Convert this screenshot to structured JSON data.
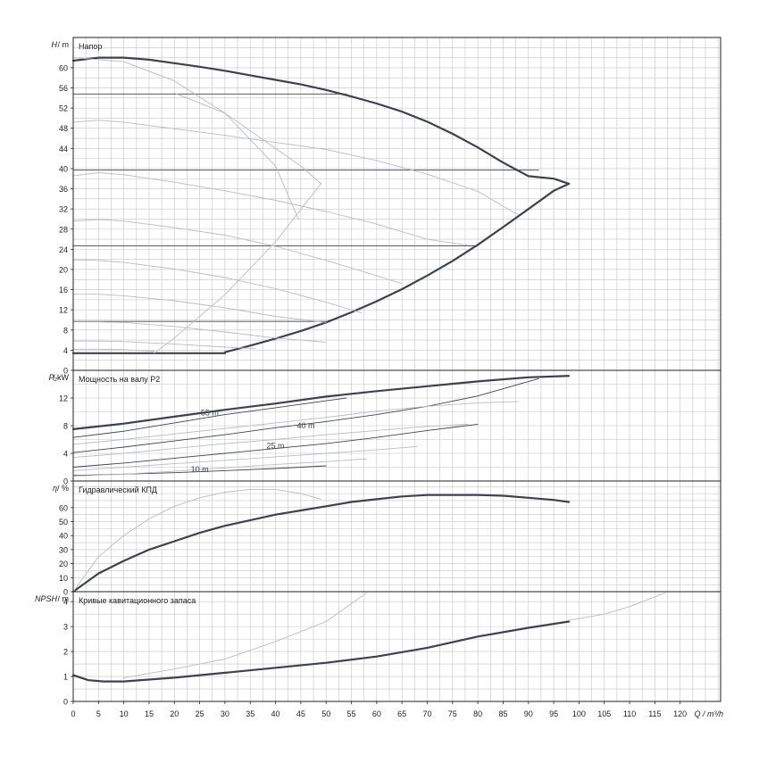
{
  "chart_data": [
    {
      "type": "line",
      "title": "Напор",
      "ylabel_sym": "H",
      "ylabel_unit": "/ m",
      "ylim": [
        0,
        66
      ],
      "yticks": [
        0,
        4,
        8,
        12,
        16,
        20,
        24,
        28,
        32,
        36,
        40,
        44,
        48,
        52,
        56,
        60
      ],
      "grid": true,
      "lines": [
        {
          "id": "max-curve",
          "style": "main",
          "x": [
            0,
            5,
            10,
            15,
            20,
            25,
            30,
            35,
            40,
            45,
            50,
            55,
            60,
            65,
            70,
            75,
            80,
            85,
            90,
            95,
            98
          ],
          "y": [
            61.4,
            62,
            62,
            61.6,
            60.9,
            60.2,
            59.4,
            58.5,
            57.6,
            56.7,
            55.6,
            54.3,
            52.9,
            51.3,
            49.3,
            46.9,
            44.2,
            41.2,
            38.5,
            38,
            37
          ]
        },
        {
          "id": "right-boundary",
          "style": "main",
          "x": [
            30,
            35,
            40,
            45,
            50,
            55,
            60,
            65,
            70,
            75,
            80,
            85,
            90,
            95,
            98
          ],
          "y": [
            3.6,
            4.9,
            6.3,
            7.8,
            9.5,
            11.5,
            13.7,
            16.1,
            18.8,
            21.7,
            24.9,
            28.4,
            32.0,
            35.6,
            37.0
          ]
        },
        {
          "id": "bottom-boundary",
          "style": "main",
          "x": [
            0,
            30
          ],
          "y": [
            3.4,
            3.4
          ]
        },
        {
          "id": "h-ref-55",
          "style": "thin",
          "x": [
            0,
            54
          ],
          "y": [
            54.8,
            54.8
          ]
        },
        {
          "id": "h-ref-40",
          "style": "thin",
          "x": [
            0,
            92
          ],
          "y": [
            39.7,
            39.7
          ]
        },
        {
          "id": "h-ref-25",
          "style": "thin",
          "x": [
            0,
            80
          ],
          "y": [
            24.7,
            24.7
          ]
        },
        {
          "id": "h-ref-10",
          "style": "thin",
          "x": [
            0,
            50
          ],
          "y": [
            9.7,
            9.7
          ]
        },
        {
          "id": "reduced-1",
          "style": "light",
          "x": [
            0,
            5,
            10,
            20,
            30,
            40,
            50,
            60,
            70,
            80,
            88
          ],
          "y": [
            49.2,
            49.6,
            49.2,
            47.9,
            46.6,
            45.2,
            43.8,
            41.6,
            38.9,
            35.5,
            30.8
          ]
        },
        {
          "id": "reduced-2",
          "style": "light",
          "x": [
            0,
            5,
            10,
            20,
            30,
            40,
            50,
            60,
            70,
            78
          ],
          "y": [
            38.6,
            39.2,
            38.8,
            37.3,
            35.6,
            33.7,
            31.5,
            29.0,
            26.0,
            24.8
          ]
        },
        {
          "id": "reduced-3",
          "style": "light",
          "x": [
            0,
            5,
            10,
            20,
            30,
            40,
            50,
            58,
            65
          ],
          "y": [
            29.6,
            29.9,
            29.6,
            28.3,
            26.8,
            24.6,
            21.8,
            19.4,
            17.2
          ]
        },
        {
          "id": "reduced-4",
          "style": "light",
          "x": [
            0,
            5,
            10,
            20,
            30,
            40,
            50,
            57
          ],
          "y": [
            21.9,
            21.8,
            21.4,
            20.1,
            18.4,
            16.2,
            13.5,
            11.4
          ]
        },
        {
          "id": "reduced-5",
          "style": "light",
          "x": [
            0,
            5,
            10,
            20,
            30,
            40,
            50
          ],
          "y": [
            15.1,
            15.1,
            14.8,
            13.8,
            12.4,
            10.7,
            9.5
          ]
        },
        {
          "id": "reduced-6",
          "style": "light",
          "x": [
            0,
            5,
            10,
            20,
            30,
            40,
            50
          ],
          "y": [
            9.6,
            9.6,
            9.5,
            8.7,
            7.6,
            6.4,
            5.6
          ]
        },
        {
          "id": "reduced-7",
          "style": "light",
          "x": [
            0,
            5,
            10,
            20,
            30,
            36
          ],
          "y": [
            5.8,
            5.8,
            5.7,
            5.2,
            4.6,
            4.3
          ]
        },
        {
          "id": "reduced-8",
          "style": "light",
          "x": [
            0,
            5,
            10,
            16
          ],
          "y": [
            4.2,
            4.2,
            4.1,
            3.8
          ]
        },
        {
          "id": "sweep-1",
          "style": "light",
          "x": [
            0,
            10,
            20,
            30,
            40,
            44.5
          ],
          "y": [
            62,
            61.2,
            57.4,
            51,
            40.5,
            30
          ]
        },
        {
          "id": "sweep-2",
          "style": "light",
          "x": [
            20,
            30,
            40,
            45,
            49
          ],
          "y": [
            55,
            51,
            44,
            40.5,
            37
          ]
        },
        {
          "id": "sweep-3",
          "style": "light",
          "x": [
            16,
            20,
            30,
            40,
            49
          ],
          "y": [
            3.4,
            6.4,
            15,
            25.5,
            37
          ]
        }
      ]
    },
    {
      "type": "line",
      "title": "Мощность на валу P2",
      "ylabel_sym": "P₂",
      "ylabel_unit": "/ kW",
      "ylim": [
        0,
        16
      ],
      "yticks": [
        0,
        4,
        8,
        12
      ],
      "grid": true,
      "annotations": [
        {
          "text": "55 m",
          "x": 27,
          "y": 9.5
        },
        {
          "text": "40 m",
          "x": 46,
          "y": 7.6
        },
        {
          "text": "25 m",
          "x": 40,
          "y": 4.7
        },
        {
          "text": "10 m",
          "x": 25,
          "y": 1.3
        }
      ],
      "lines": [
        {
          "id": "p-max",
          "style": "main",
          "x": [
            0,
            10,
            20,
            30,
            40,
            50,
            60,
            70,
            80,
            90,
            98
          ],
          "y": [
            7.5,
            8.3,
            9.3,
            10.3,
            11.2,
            12.2,
            13,
            13.7,
            14.4,
            15,
            15.2
          ]
        },
        {
          "id": "p-55",
          "style": "thin",
          "x": [
            0,
            10,
            20,
            30,
            40,
            50,
            54
          ],
          "y": [
            6.3,
            7.2,
            8.4,
            9.6,
            10.6,
            11.6,
            12
          ]
        },
        {
          "id": "p-40",
          "style": "thin",
          "x": [
            0,
            10,
            20,
            30,
            40,
            50,
            60,
            70,
            80,
            92
          ],
          "y": [
            4.1,
            4.9,
            5.8,
            6.7,
            7.7,
            8.6,
            9.6,
            10.8,
            12.3,
            14.8
          ]
        },
        {
          "id": "p-25",
          "style": "thin",
          "x": [
            0,
            10,
            20,
            30,
            40,
            50,
            60,
            70,
            80
          ],
          "y": [
            2,
            2.6,
            3.3,
            4,
            4.7,
            5.4,
            6.3,
            7.3,
            8.2
          ]
        },
        {
          "id": "p-10",
          "style": "thin",
          "x": [
            0,
            10,
            20,
            30,
            40,
            50
          ],
          "y": [
            0.8,
            1,
            1.2,
            1.5,
            1.8,
            2.2
          ]
        },
        {
          "id": "p-light-1",
          "style": "light",
          "x": [
            0,
            10,
            20,
            30,
            40,
            50,
            60,
            70,
            80,
            88
          ],
          "y": [
            5.3,
            6,
            6.8,
            7.6,
            8.4,
            9.2,
            10.1,
            10.8,
            11.3,
            11.5
          ]
        },
        {
          "id": "p-light-2",
          "style": "light",
          "x": [
            0,
            10,
            20,
            30,
            40,
            50,
            60,
            70,
            78
          ],
          "y": [
            3.4,
            4,
            4.7,
            5.4,
            6,
            6.7,
            7.3,
            7.9,
            8.2
          ]
        },
        {
          "id": "p-light-3",
          "style": "light",
          "x": [
            0,
            10,
            20,
            30,
            40,
            50,
            60,
            68
          ],
          "y": [
            1.5,
            2,
            2.5,
            3,
            3.5,
            4,
            4.5,
            5
          ]
        },
        {
          "id": "p-light-4",
          "style": "light",
          "x": [
            0,
            10,
            20,
            30,
            40,
            50,
            58
          ],
          "y": [
            0.7,
            1,
            1.4,
            1.9,
            2.4,
            2.8,
            3.2
          ]
        }
      ]
    },
    {
      "type": "line",
      "title": "Гидравлический КПД",
      "ylabel_sym": "η",
      "ylabel_unit": "/ %",
      "ylim": [
        0,
        79
      ],
      "yticks": [
        0,
        10,
        20,
        30,
        40,
        50,
        60
      ],
      "grid": true,
      "lines": [
        {
          "id": "eff-main",
          "style": "main",
          "x": [
            0,
            5,
            10,
            15,
            20,
            25,
            30,
            35,
            40,
            45,
            50,
            55,
            60,
            65,
            70,
            75,
            80,
            85,
            90,
            95,
            98
          ],
          "y": [
            0,
            13,
            22,
            30,
            36,
            42,
            47,
            51,
            55,
            58,
            61,
            64,
            66,
            68,
            69,
            69,
            69,
            68.5,
            67,
            65.5,
            64
          ]
        },
        {
          "id": "eff-light",
          "style": "light",
          "x": [
            0,
            5,
            10,
            15,
            20,
            25,
            30,
            35,
            40,
            45,
            49
          ],
          "y": [
            0,
            25,
            40,
            52,
            61,
            67,
            71,
            73,
            73,
            70,
            66
          ]
        }
      ]
    },
    {
      "type": "line",
      "title": "Кривые кавитационного запаса",
      "ylabel_sym": "NPSH",
      "ylabel_unit": "/ m",
      "xlabel": "Q / m³/h",
      "ylim": [
        0,
        4.4
      ],
      "xlim": [
        0,
        128
      ],
      "yticks": [
        0,
        1,
        2,
        3,
        4
      ],
      "xticks": [
        0,
        5,
        10,
        15,
        20,
        25,
        30,
        35,
        40,
        45,
        50,
        55,
        60,
        65,
        70,
        75,
        80,
        85,
        90,
        95,
        100,
        105,
        110,
        115,
        120
      ],
      "grid": true,
      "lines": [
        {
          "id": "npsh-main",
          "style": "main",
          "x": [
            0,
            3,
            6,
            10,
            20,
            30,
            40,
            50,
            60,
            70,
            80,
            90,
            98
          ],
          "y": [
            1.05,
            0.85,
            0.8,
            0.8,
            0.95,
            1.15,
            1.35,
            1.55,
            1.8,
            2.15,
            2.6,
            2.95,
            3.2
          ]
        },
        {
          "id": "npsh-light-1",
          "style": "light",
          "x": [
            10,
            20,
            30,
            40,
            50,
            58
          ],
          "y": [
            0.95,
            1.3,
            1.7,
            2.4,
            3.2,
            4.35
          ]
        },
        {
          "id": "npsh-light-2",
          "style": "light",
          "x": [
            98,
            105,
            110,
            117
          ],
          "y": [
            3.25,
            3.5,
            3.8,
            4.35
          ]
        }
      ]
    }
  ]
}
